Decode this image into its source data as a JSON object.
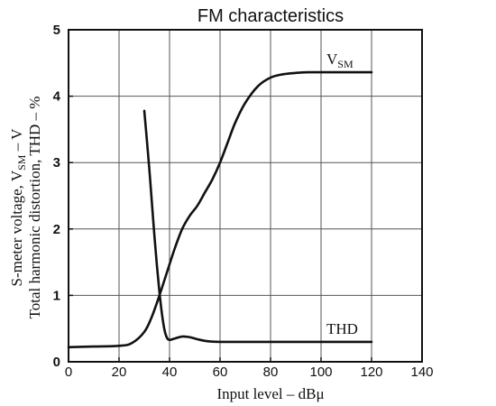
{
  "chart_data": {
    "type": "line",
    "title": "FM characteristics",
    "xlabel": "Input level – dBμ",
    "ylabel_line1": "S-meter voltage, V",
    "ylabel_line1_sub": "SM",
    "ylabel_line1_suffix": " – V",
    "ylabel_line2": "Total harmonic distortion, THD – %",
    "xlim": [
      0,
      140
    ],
    "ylim": [
      0,
      5
    ],
    "xticks": [
      "0",
      "20",
      "40",
      "60",
      "80",
      "100",
      "120",
      "140"
    ],
    "yticks": [
      "0",
      "1",
      "2",
      "3",
      "4",
      "5"
    ],
    "grid": true,
    "series": [
      {
        "name": "V",
        "name_sub": "SM",
        "x": [
          0,
          10,
          20,
          25,
          30,
          33,
          36,
          39,
          42,
          45,
          48,
          51,
          54,
          57,
          60,
          63,
          66,
          70,
          75,
          80,
          85,
          90,
          95,
          100,
          110,
          120
        ],
        "y": [
          0.22,
          0.23,
          0.24,
          0.28,
          0.45,
          0.68,
          1.0,
          1.35,
          1.7,
          2.0,
          2.2,
          2.35,
          2.55,
          2.75,
          3.0,
          3.3,
          3.6,
          3.9,
          4.15,
          4.28,
          4.33,
          4.35,
          4.36,
          4.36,
          4.36,
          4.36
        ]
      },
      {
        "name": "THD",
        "x": [
          30,
          31,
          32,
          33,
          34,
          35,
          36,
          37,
          38,
          39,
          40,
          42,
          45,
          48,
          51,
          55,
          60,
          70,
          80,
          90,
          100,
          110,
          120
        ],
        "y": [
          3.78,
          3.35,
          2.9,
          2.4,
          1.9,
          1.45,
          1.05,
          0.72,
          0.48,
          0.36,
          0.33,
          0.35,
          0.38,
          0.37,
          0.34,
          0.31,
          0.3,
          0.3,
          0.3,
          0.3,
          0.3,
          0.3,
          0.3
        ]
      }
    ]
  }
}
